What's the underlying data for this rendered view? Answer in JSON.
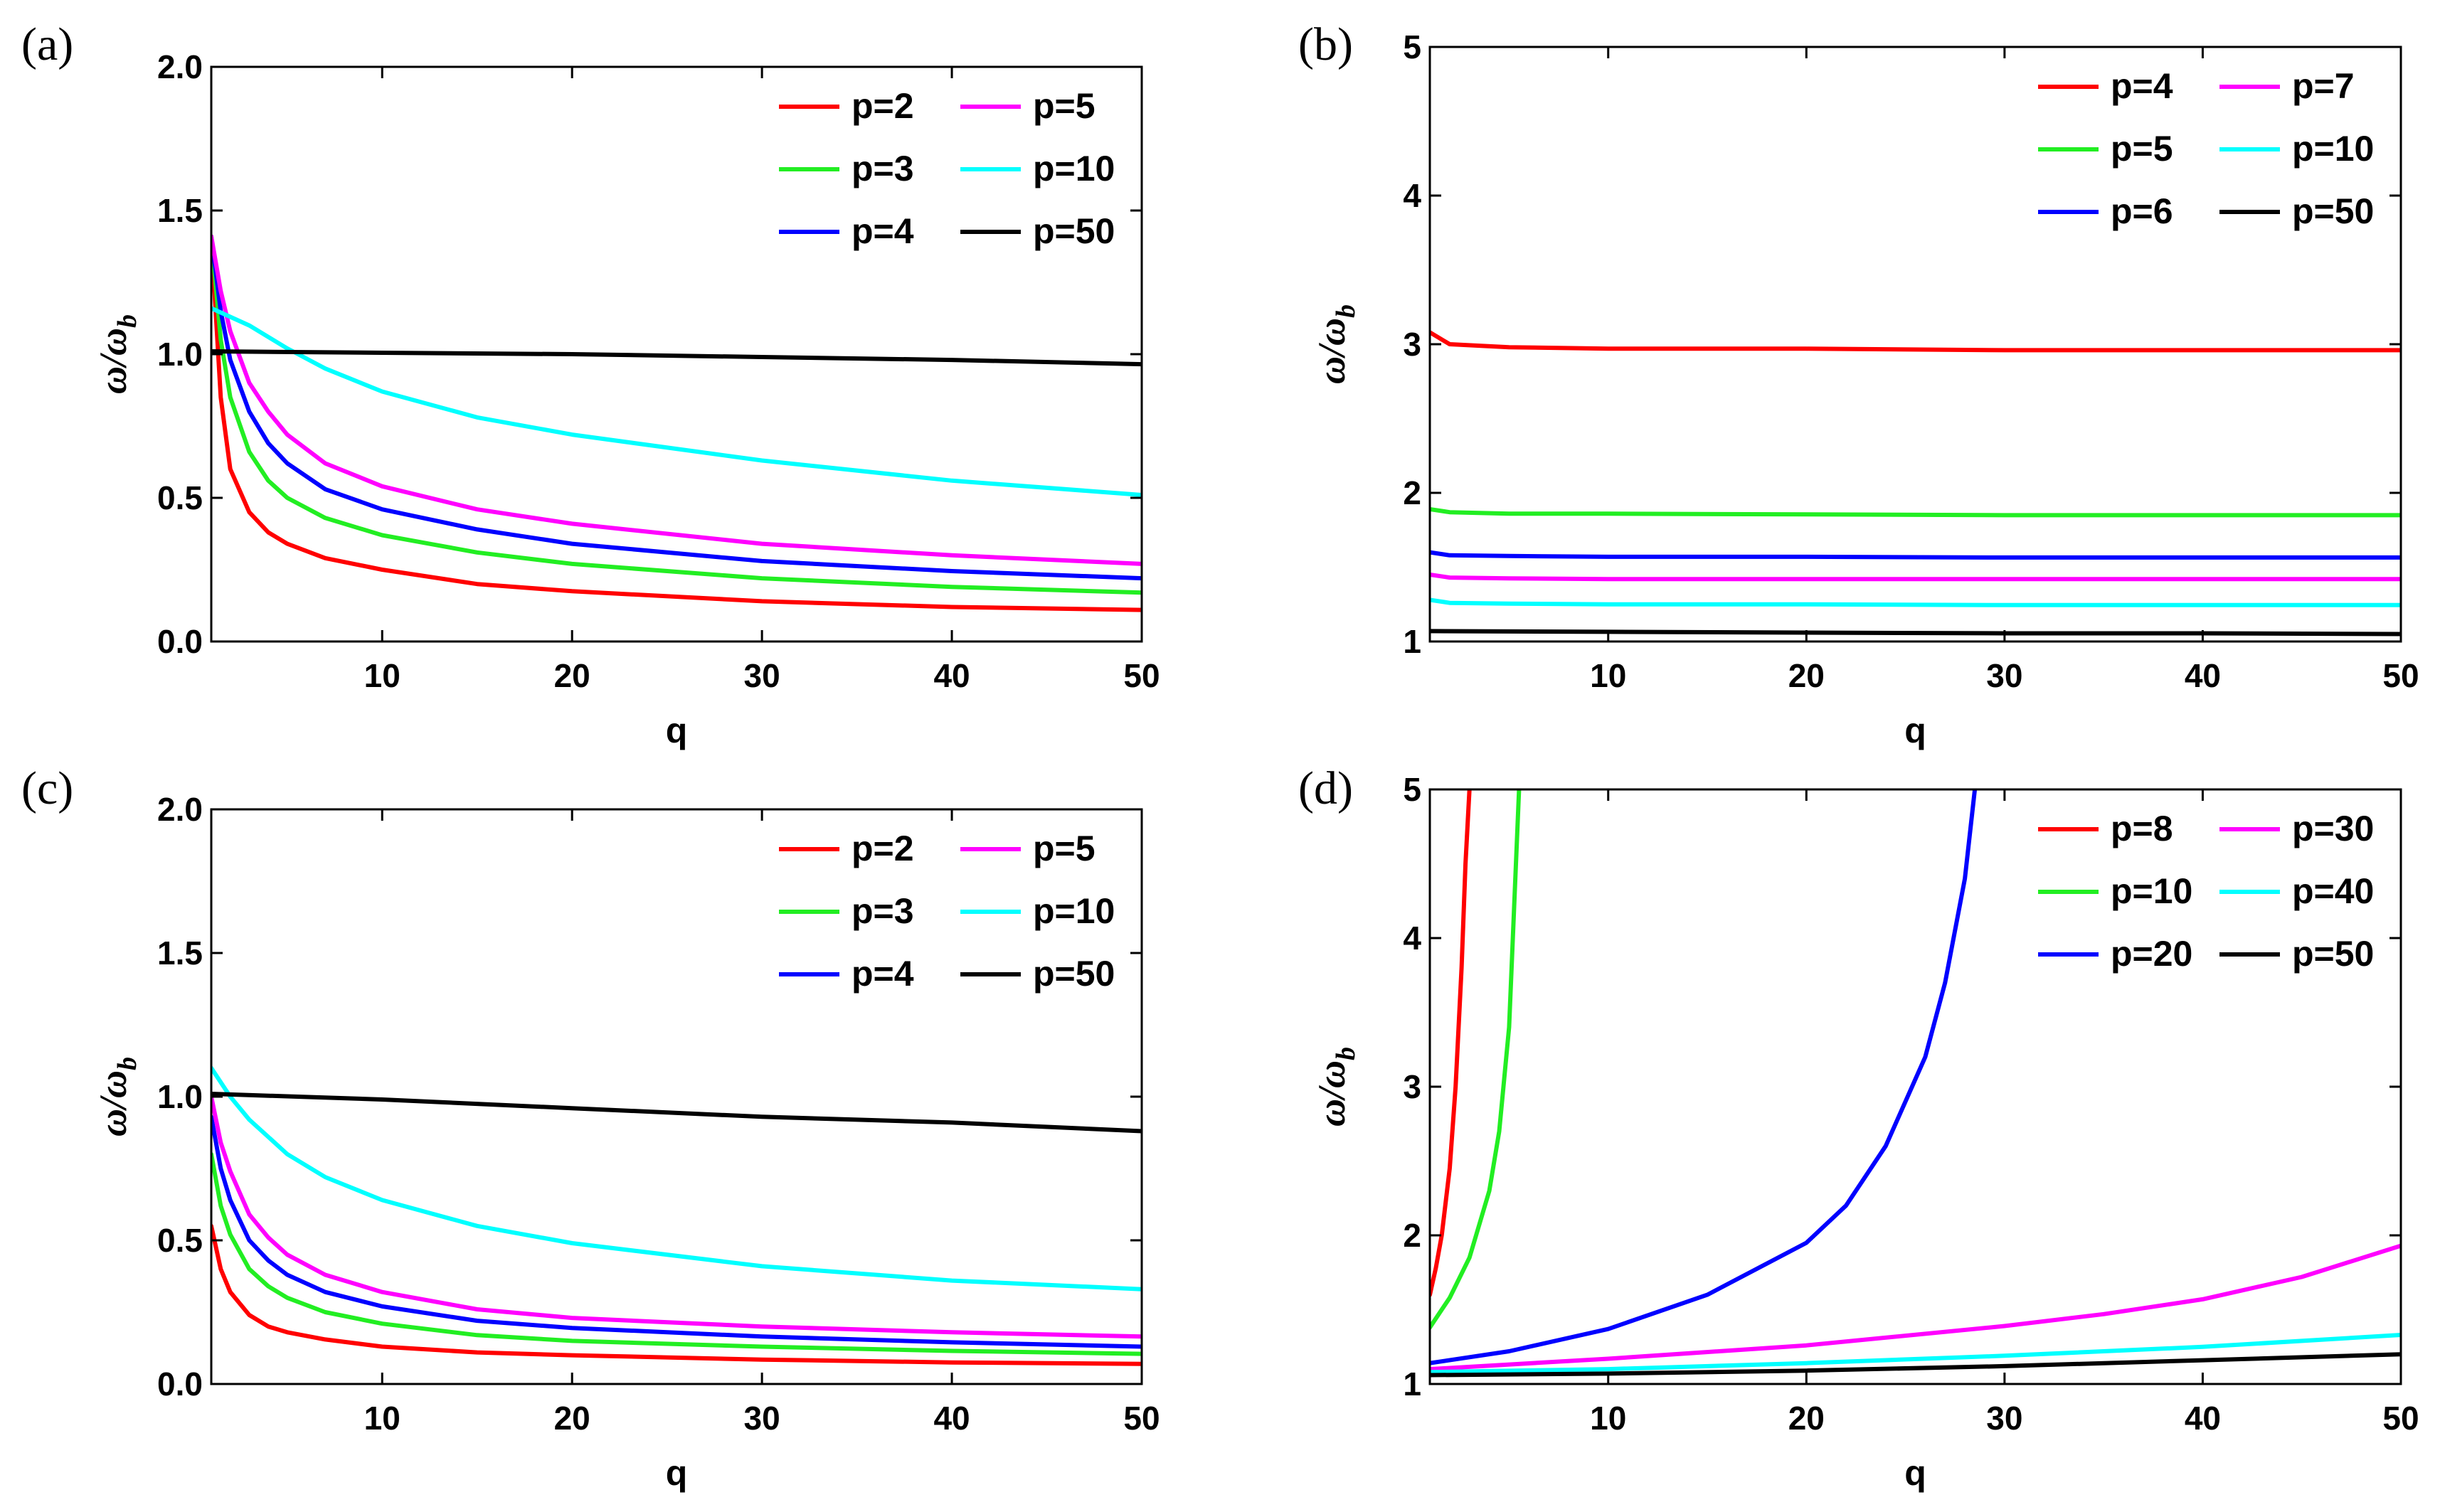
{
  "chart_data": [
    {
      "id": "a",
      "type": "line",
      "panel_label": "(a)",
      "xlabel": "q",
      "ylabel_main": "ω/ω",
      "ylabel_sub": "b",
      "xlim": [
        1,
        50
      ],
      "ylim": [
        0,
        2
      ],
      "xticks": [
        10,
        20,
        30,
        40,
        50
      ],
      "yticks": [
        0.0,
        0.5,
        1.0,
        1.5,
        2.0
      ],
      "ytick_labels": [
        "0.0",
        "0.5",
        "1.0",
        "1.5",
        "2.0"
      ],
      "legend_position": "top-right",
      "series": [
        {
          "name": "p=2",
          "color": "#ff0000",
          "x": [
            1,
            1.5,
            2,
            3,
            4,
            5,
            7,
            10,
            15,
            20,
            30,
            40,
            50
          ],
          "y": [
            1.41,
            0.85,
            0.6,
            0.45,
            0.38,
            0.34,
            0.29,
            0.25,
            0.2,
            0.175,
            0.14,
            0.12,
            0.11
          ]
        },
        {
          "name": "p=3",
          "color": "#22ee22",
          "x": [
            1,
            1.5,
            2,
            3,
            4,
            5,
            7,
            10,
            15,
            20,
            30,
            40,
            50
          ],
          "y": [
            1.41,
            1.05,
            0.85,
            0.66,
            0.56,
            0.5,
            0.43,
            0.37,
            0.31,
            0.27,
            0.22,
            0.19,
            0.17
          ]
        },
        {
          "name": "p=4",
          "color": "#0000ff",
          "x": [
            1,
            1.5,
            2,
            3,
            4,
            5,
            7,
            10,
            15,
            20,
            30,
            40,
            50
          ],
          "y": [
            1.41,
            1.15,
            0.98,
            0.8,
            0.69,
            0.62,
            0.53,
            0.46,
            0.39,
            0.34,
            0.28,
            0.245,
            0.22
          ]
        },
        {
          "name": "p=5",
          "color": "#ff00ff",
          "x": [
            1,
            1.5,
            2,
            3,
            4,
            5,
            7,
            10,
            15,
            20,
            30,
            40,
            50
          ],
          "y": [
            1.41,
            1.22,
            1.08,
            0.9,
            0.8,
            0.72,
            0.62,
            0.54,
            0.46,
            0.41,
            0.34,
            0.3,
            0.27
          ]
        },
        {
          "name": "p=10",
          "color": "#00ffff",
          "x": [
            1,
            3,
            5,
            7,
            10,
            15,
            20,
            30,
            40,
            50
          ],
          "y": [
            1.16,
            1.1,
            1.02,
            0.95,
            0.87,
            0.78,
            0.72,
            0.63,
            0.56,
            0.51
          ]
        },
        {
          "name": "p=50",
          "color": "#000000",
          "x": [
            1,
            10,
            20,
            30,
            40,
            50
          ],
          "y": [
            1.01,
            1.005,
            1.0,
            0.99,
            0.98,
            0.965
          ]
        }
      ]
    },
    {
      "id": "b",
      "type": "line",
      "panel_label": "(b)",
      "xlabel": "q",
      "ylabel_main": "ω/ω",
      "ylabel_sub": "b",
      "xlim": [
        1,
        50
      ],
      "ylim": [
        1,
        5
      ],
      "xticks": [
        10,
        20,
        30,
        40,
        50
      ],
      "yticks": [
        1,
        2,
        3,
        4,
        5
      ],
      "ytick_labels": [
        "1",
        "2",
        "3",
        "4",
        "5"
      ],
      "legend_position": "top-right",
      "series": [
        {
          "name": "p=4",
          "color": "#ff0000",
          "x": [
            1,
            2,
            5,
            10,
            20,
            30,
            40,
            50
          ],
          "y": [
            3.08,
            3.0,
            2.98,
            2.97,
            2.97,
            2.96,
            2.96,
            2.96
          ]
        },
        {
          "name": "p=5",
          "color": "#22ee22",
          "x": [
            1,
            2,
            5,
            10,
            20,
            30,
            40,
            50
          ],
          "y": [
            1.89,
            1.87,
            1.86,
            1.86,
            1.855,
            1.85,
            1.85,
            1.85
          ]
        },
        {
          "name": "p=6",
          "color": "#0000ff",
          "x": [
            1,
            2,
            5,
            10,
            20,
            30,
            40,
            50
          ],
          "y": [
            1.6,
            1.58,
            1.575,
            1.57,
            1.57,
            1.565,
            1.565,
            1.565
          ]
        },
        {
          "name": "p=7",
          "color": "#ff00ff",
          "x": [
            1,
            2,
            5,
            10,
            20,
            30,
            40,
            50
          ],
          "y": [
            1.45,
            1.43,
            1.425,
            1.42,
            1.42,
            1.42,
            1.42,
            1.42
          ]
        },
        {
          "name": "p=10",
          "color": "#00ffff",
          "x": [
            1,
            2,
            5,
            10,
            20,
            30,
            40,
            50
          ],
          "y": [
            1.28,
            1.26,
            1.255,
            1.25,
            1.25,
            1.245,
            1.245,
            1.245
          ]
        },
        {
          "name": "p=50",
          "color": "#000000",
          "x": [
            1,
            10,
            20,
            30,
            40,
            50
          ],
          "y": [
            1.07,
            1.065,
            1.06,
            1.055,
            1.055,
            1.05
          ]
        }
      ]
    },
    {
      "id": "c",
      "type": "line",
      "panel_label": "(c)",
      "xlabel": "q",
      "ylabel_main": "ω/ω",
      "ylabel_sub": "b",
      "xlim": [
        1,
        50
      ],
      "ylim": [
        0,
        2
      ],
      "xticks": [
        10,
        20,
        30,
        40,
        50
      ],
      "yticks": [
        0.0,
        0.5,
        1.0,
        1.5,
        2.0
      ],
      "ytick_labels": [
        "0.0",
        "0.5",
        "1.0",
        "1.5",
        "2.0"
      ],
      "legend_position": "top-right",
      "series": [
        {
          "name": "p=2",
          "color": "#ff0000",
          "x": [
            1,
            1.5,
            2,
            3,
            4,
            5,
            7,
            10,
            15,
            20,
            30,
            40,
            50
          ],
          "y": [
            0.55,
            0.4,
            0.32,
            0.24,
            0.2,
            0.18,
            0.155,
            0.13,
            0.11,
            0.1,
            0.085,
            0.075,
            0.07
          ]
        },
        {
          "name": "p=3",
          "color": "#22ee22",
          "x": [
            1,
            1.5,
            2,
            3,
            4,
            5,
            7,
            10,
            15,
            20,
            30,
            40,
            50
          ],
          "y": [
            0.8,
            0.62,
            0.52,
            0.4,
            0.34,
            0.3,
            0.25,
            0.21,
            0.17,
            0.15,
            0.13,
            0.115,
            0.105
          ]
        },
        {
          "name": "p=4",
          "color": "#0000ff",
          "x": [
            1,
            1.5,
            2,
            3,
            4,
            5,
            7,
            10,
            15,
            20,
            30,
            40,
            50
          ],
          "y": [
            0.93,
            0.75,
            0.64,
            0.5,
            0.43,
            0.38,
            0.32,
            0.27,
            0.22,
            0.195,
            0.165,
            0.145,
            0.13
          ]
        },
        {
          "name": "p=5",
          "color": "#ff00ff",
          "x": [
            1,
            1.5,
            2,
            3,
            4,
            5,
            7,
            10,
            15,
            20,
            30,
            40,
            50
          ],
          "y": [
            1.0,
            0.84,
            0.74,
            0.59,
            0.51,
            0.45,
            0.38,
            0.32,
            0.26,
            0.23,
            0.2,
            0.18,
            0.165
          ]
        },
        {
          "name": "p=10",
          "color": "#00ffff",
          "x": [
            1,
            2,
            3,
            5,
            7,
            10,
            15,
            20,
            30,
            40,
            50
          ],
          "y": [
            1.1,
            1.0,
            0.92,
            0.8,
            0.72,
            0.64,
            0.55,
            0.49,
            0.41,
            0.36,
            0.33
          ]
        },
        {
          "name": "p=50",
          "color": "#000000",
          "x": [
            1,
            10,
            20,
            30,
            40,
            50
          ],
          "y": [
            1.01,
            0.99,
            0.96,
            0.93,
            0.91,
            0.88
          ]
        }
      ]
    },
    {
      "id": "d",
      "type": "line",
      "panel_label": "(d)",
      "xlabel": "q",
      "ylabel_main": "ω/ω",
      "ylabel_sub": "b",
      "xlim": [
        1,
        50
      ],
      "ylim": [
        1,
        5
      ],
      "xticks": [
        10,
        20,
        30,
        40,
        50
      ],
      "yticks": [
        1,
        2,
        3,
        4,
        5
      ],
      "ytick_labels": [
        "1",
        "2",
        "3",
        "4",
        "5"
      ],
      "legend_position": "top-right",
      "series": [
        {
          "name": "p=8",
          "color": "#ff0000",
          "x": [
            1,
            1.3,
            1.6,
            2.0,
            2.3,
            2.6,
            2.8,
            3.0
          ],
          "y": [
            1.6,
            1.78,
            2.0,
            2.45,
            3.0,
            3.8,
            4.5,
            5.0
          ]
        },
        {
          "name": "p=10",
          "color": "#22ee22",
          "x": [
            1,
            1.5,
            2,
            3,
            4,
            4.5,
            5,
            5.5
          ],
          "y": [
            1.38,
            1.48,
            1.58,
            1.85,
            2.3,
            2.7,
            3.4,
            5.0
          ]
        },
        {
          "name": "p=20",
          "color": "#0000ff",
          "x": [
            1,
            5,
            10,
            15,
            20,
            22,
            24,
            26,
            27,
            28,
            28.5
          ],
          "y": [
            1.14,
            1.22,
            1.37,
            1.6,
            1.95,
            2.2,
            2.6,
            3.2,
            3.7,
            4.4,
            5.0
          ]
        },
        {
          "name": "p=30",
          "color": "#ff00ff",
          "x": [
            1,
            10,
            20,
            30,
            35,
            40,
            45,
            50
          ],
          "y": [
            1.1,
            1.17,
            1.26,
            1.39,
            1.47,
            1.57,
            1.72,
            1.93
          ]
        },
        {
          "name": "p=40",
          "color": "#00ffff",
          "x": [
            1,
            10,
            20,
            30,
            40,
            50
          ],
          "y": [
            1.08,
            1.1,
            1.14,
            1.19,
            1.25,
            1.33
          ]
        },
        {
          "name": "p=50",
          "color": "#000000",
          "x": [
            1,
            10,
            20,
            30,
            40,
            50
          ],
          "y": [
            1.06,
            1.07,
            1.09,
            1.12,
            1.16,
            1.2
          ]
        }
      ]
    }
  ]
}
